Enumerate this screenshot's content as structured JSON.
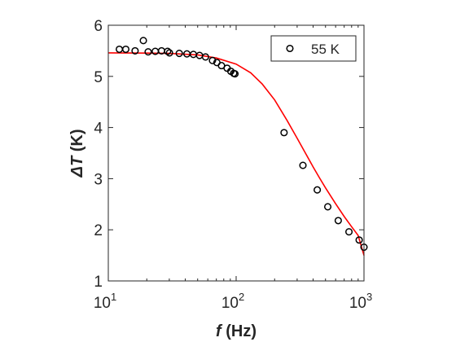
{
  "chart_data": {
    "type": "scatter",
    "x_scale": "log",
    "y_scale": "linear",
    "xlim": [
      10,
      1000
    ],
    "ylim": [
      1,
      6
    ],
    "grid": false,
    "legend_position": "top-right",
    "xlabel": {
      "symbol": "f",
      "unit": " (Hz)"
    },
    "ylabel": {
      "symbol": "ΔT",
      "unit": " (K)"
    },
    "x_ticks": [
      {
        "value": 10,
        "base": "10",
        "exp": "1"
      },
      {
        "value": 100,
        "base": "10",
        "exp": "2"
      },
      {
        "value": 1000,
        "base": "10",
        "exp": "3"
      }
    ],
    "y_ticks": [
      {
        "value": 1,
        "label": "1"
      },
      {
        "value": 2,
        "label": "2"
      },
      {
        "value": 3,
        "label": "3"
      },
      {
        "value": 4,
        "label": "4"
      },
      {
        "value": 5,
        "label": "5"
      },
      {
        "value": 6,
        "label": "6"
      }
    ],
    "series": [
      {
        "name": "55 K",
        "kind": "markers",
        "marker": "circle",
        "color": "#000000",
        "points": [
          [
            12.2,
            5.53
          ],
          [
            13.7,
            5.53
          ],
          [
            16.2,
            5.5
          ],
          [
            18.8,
            5.7
          ],
          [
            20.5,
            5.48
          ],
          [
            23.3,
            5.49
          ],
          [
            26.1,
            5.5
          ],
          [
            29.1,
            5.49
          ],
          [
            30.1,
            5.46
          ],
          [
            35.9,
            5.45
          ],
          [
            41.2,
            5.44
          ],
          [
            46.3,
            5.43
          ],
          [
            51.7,
            5.41
          ],
          [
            57.6,
            5.38
          ],
          [
            65.3,
            5.31
          ],
          [
            70.7,
            5.27
          ],
          [
            76.8,
            5.21
          ],
          [
            85,
            5.16
          ],
          [
            90.8,
            5.1
          ],
          [
            95.7,
            5.06
          ],
          [
            97.9,
            5.05
          ],
          [
            237,
            3.9
          ],
          [
            333,
            3.26
          ],
          [
            431,
            2.78
          ],
          [
            521,
            2.45
          ],
          [
            629,
            2.18
          ],
          [
            763,
            1.96
          ],
          [
            917,
            1.8
          ],
          [
            1000,
            1.66
          ]
        ]
      },
      {
        "name": "",
        "kind": "line",
        "color": "#ff0000",
        "points": [
          [
            10,
            5.46
          ],
          [
            20,
            5.455
          ],
          [
            30,
            5.45
          ],
          [
            50,
            5.42
          ],
          [
            70,
            5.36
          ],
          [
            100,
            5.24
          ],
          [
            130,
            5.07
          ],
          [
            160,
            4.85
          ],
          [
            200,
            4.54
          ],
          [
            250,
            4.14
          ],
          [
            300,
            3.79
          ],
          [
            350,
            3.49
          ],
          [
            400,
            3.23
          ],
          [
            450,
            3.01
          ],
          [
            500,
            2.82
          ],
          [
            600,
            2.51
          ],
          [
            700,
            2.26
          ],
          [
            800,
            2.06
          ],
          [
            900,
            1.89
          ],
          [
            1000,
            1.5
          ]
        ]
      }
    ]
  }
}
